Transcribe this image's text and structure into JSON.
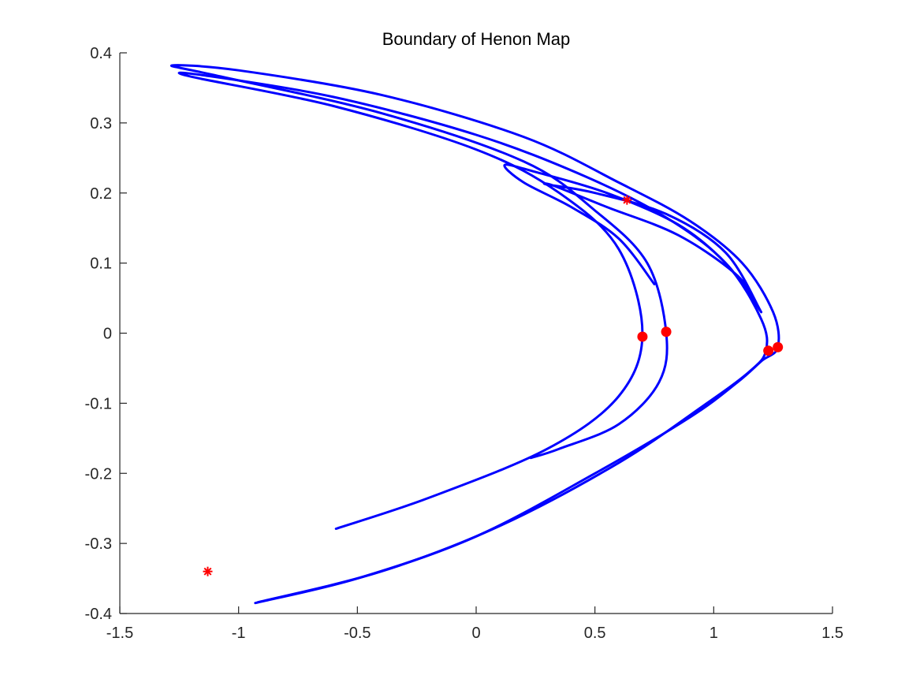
{
  "chart_data": {
    "type": "line",
    "title": "Boundary of Henon Map",
    "xlabel": "",
    "ylabel": "",
    "xlim": [
      -1.5,
      1.5
    ],
    "ylim": [
      -0.4,
      0.4
    ],
    "grid": false,
    "xticks": [
      -1.5,
      -1,
      -0.5,
      0,
      0.5,
      1,
      1.5
    ],
    "xtick_labels": [
      "-1.5",
      "-1",
      "-0.5",
      "0",
      "0.5",
      "1",
      "1.5"
    ],
    "yticks": [
      -0.4,
      -0.3,
      -0.2,
      -0.1,
      0,
      0.1,
      0.2,
      0.3,
      0.4
    ],
    "ytick_labels": [
      "-0.4",
      "-0.3",
      "-0.2",
      "-0.1",
      "0",
      "0.1",
      "0.2",
      "0.3",
      "0.4"
    ],
    "colors": {
      "curve": "#0000ff",
      "markers": "#ff0000",
      "axes": "#262626"
    },
    "series": [
      {
        "type": "line",
        "points": [
          [
            -0.93,
            -0.385
          ],
          [
            -0.5,
            -0.35
          ],
          [
            0.0,
            -0.29
          ],
          [
            0.5,
            -0.2
          ],
          [
            0.9,
            -0.12
          ],
          [
            1.1,
            -0.07
          ],
          [
            1.2,
            -0.04
          ],
          [
            1.27,
            -0.02
          ],
          [
            1.25,
            0.03
          ],
          [
            1.12,
            0.1
          ],
          [
            0.9,
            0.16
          ],
          [
            0.6,
            0.215
          ],
          [
            0.2,
            0.28
          ],
          [
            -0.4,
            0.34
          ],
          [
            -1.0,
            0.375
          ],
          [
            -1.28,
            0.382
          ],
          [
            -1.1,
            0.368
          ],
          [
            -0.4,
            0.314
          ],
          [
            0.2,
            0.245
          ],
          [
            0.5,
            0.175
          ],
          [
            0.72,
            0.1
          ],
          [
            0.8,
            0.0
          ],
          [
            0.77,
            -0.07
          ],
          [
            0.6,
            -0.13
          ],
          [
            0.35,
            -0.165
          ],
          [
            0.23,
            -0.178
          ]
        ]
      },
      {
        "type": "line",
        "points": [
          [
            -0.92,
            -0.384
          ],
          [
            -0.4,
            -0.34
          ],
          [
            0.1,
            -0.275
          ],
          [
            0.6,
            -0.185
          ],
          [
            0.95,
            -0.105
          ],
          [
            1.15,
            -0.055
          ],
          [
            1.22,
            -0.025
          ],
          [
            1.2,
            0.02
          ],
          [
            1.05,
            0.1
          ],
          [
            0.8,
            0.165
          ],
          [
            0.45,
            0.225
          ],
          [
            0.0,
            0.283
          ],
          [
            -0.6,
            0.337
          ],
          [
            -1.15,
            0.368
          ],
          [
            -1.2,
            0.366
          ],
          [
            -0.6,
            0.324
          ],
          [
            0.0,
            0.262
          ],
          [
            0.35,
            0.2
          ],
          [
            0.6,
            0.12
          ],
          [
            0.7,
            0.0
          ],
          [
            0.6,
            -0.09
          ],
          [
            0.3,
            -0.165
          ],
          [
            -0.2,
            -0.235
          ],
          [
            -0.59,
            -0.279
          ]
        ]
      },
      {
        "type": "line",
        "points": [
          [
            0.75,
            0.07
          ],
          [
            0.6,
            0.135
          ],
          [
            0.4,
            0.18
          ],
          [
            0.2,
            0.215
          ],
          [
            0.12,
            0.24
          ],
          [
            0.25,
            0.23
          ],
          [
            0.55,
            0.2
          ],
          [
            0.85,
            0.155
          ],
          [
            1.05,
            0.1
          ],
          [
            1.18,
            0.04
          ],
          [
            1.19,
            0.035
          ],
          [
            1.1,
            0.082
          ],
          [
            0.85,
            0.14
          ],
          [
            0.55,
            0.18
          ],
          [
            0.33,
            0.21
          ],
          [
            0.3,
            0.212
          ],
          [
            0.5,
            0.2
          ],
          [
            0.8,
            0.17
          ],
          [
            1.05,
            0.115
          ],
          [
            1.2,
            0.03
          ]
        ]
      },
      {
        "type": "scatter",
        "marker": "filled-circle",
        "points": [
          [
            0.7,
            -0.005
          ],
          [
            0.8,
            0.002
          ],
          [
            1.23,
            -0.025
          ],
          [
            1.27,
            -0.02
          ]
        ]
      },
      {
        "type": "scatter",
        "marker": "asterisk",
        "points": [
          [
            0.635,
            0.19
          ],
          [
            -1.13,
            -0.34
          ]
        ]
      }
    ]
  }
}
